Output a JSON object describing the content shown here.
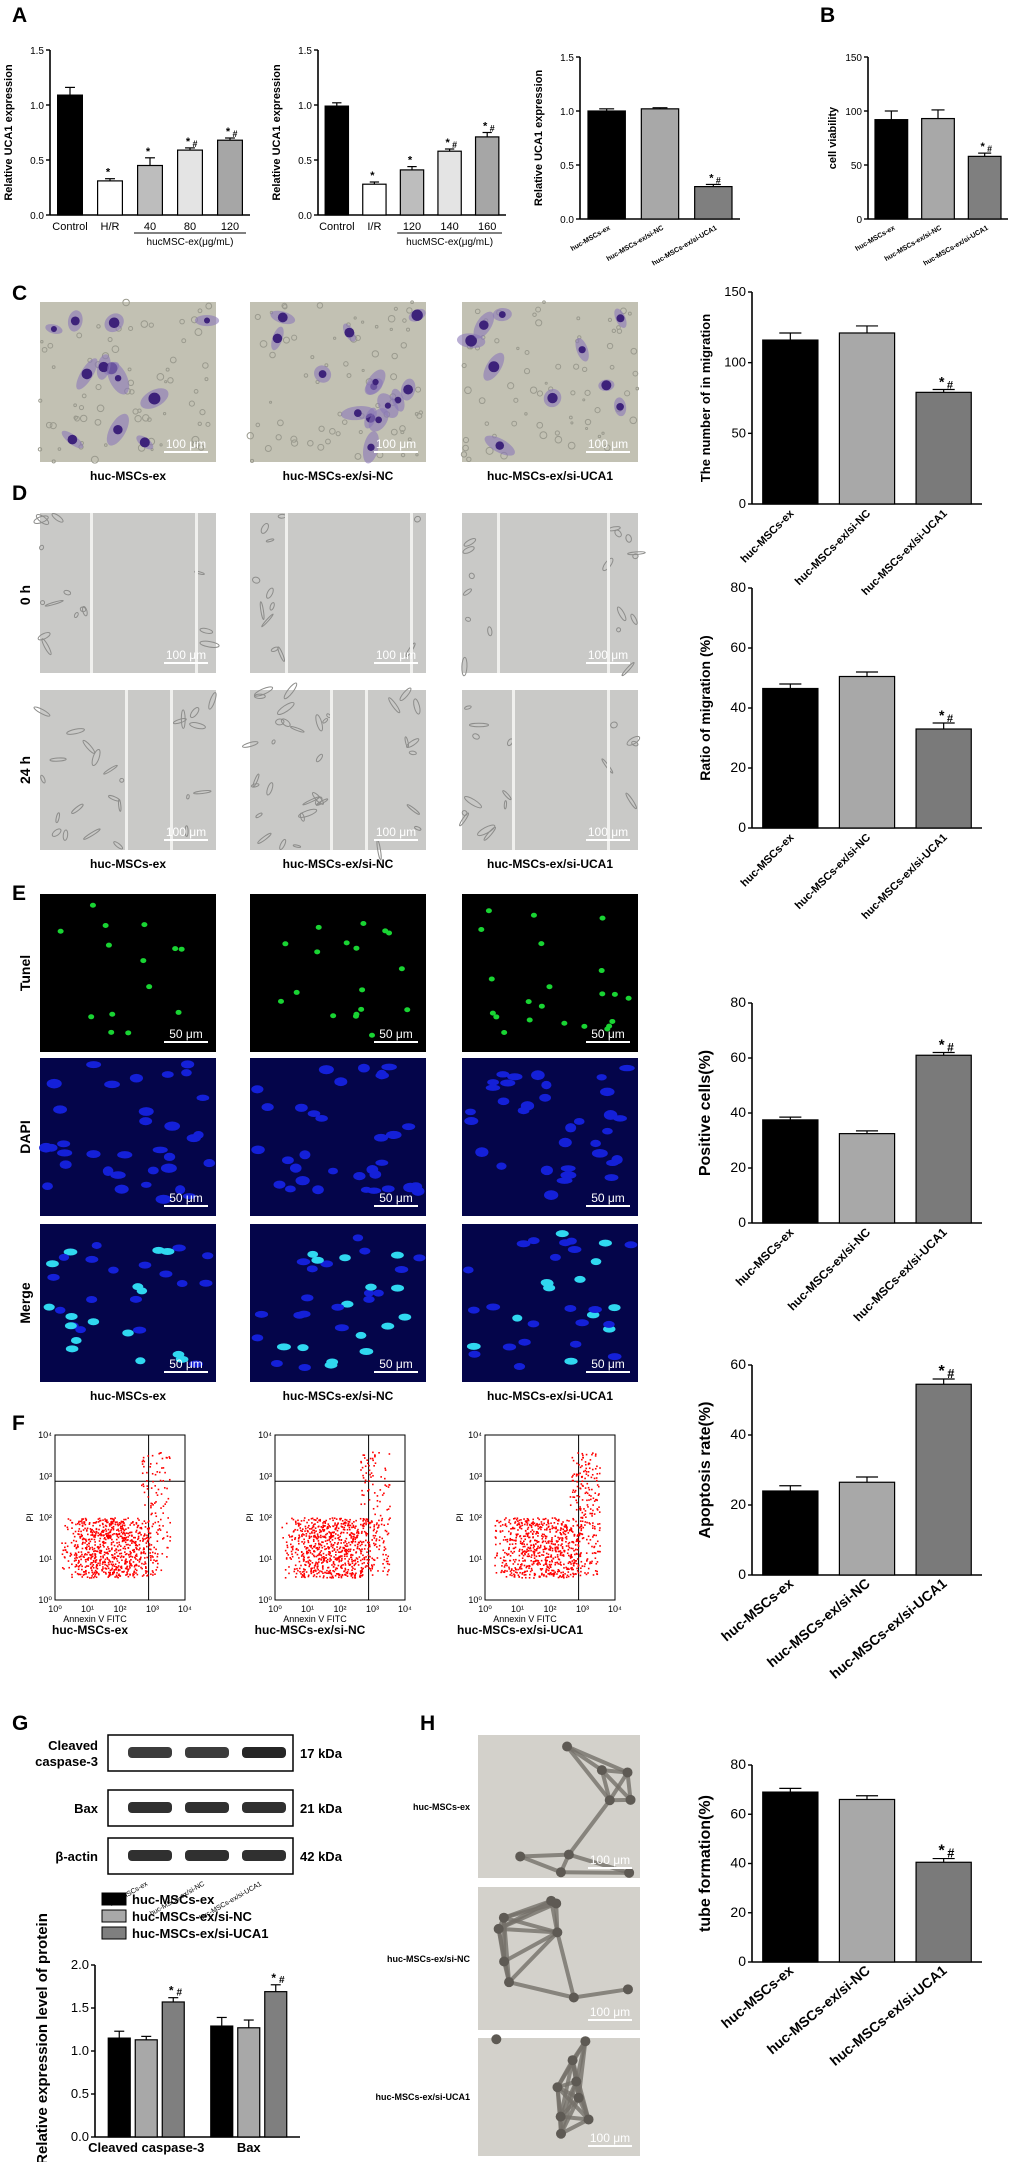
{
  "panel_letters": [
    "A",
    "B",
    "C",
    "D",
    "E",
    "F",
    "G",
    "H"
  ],
  "colors": {
    "black": "#000000",
    "white_bar": "#ffffff",
    "light_gray": "#b9b9b9",
    "mid_gray": "#a6a6a6",
    "dark_gray": "#7f7f7f",
    "flow_dots": "#ff0000",
    "tunel_green": "#19d433",
    "dapi_blue": "#1420d8"
  },
  "groups3": [
    "huc-MSCs-ex",
    "huc-MSCs-ex/si-NC",
    "huc-MSCs-ex/si-UCA1"
  ],
  "sig_marks": {
    "star": "*",
    "hash": "#"
  },
  "micro": {
    "scale_100": "100 μm",
    "scale_50": "50 μm",
    "d_rows": [
      "0 h",
      "24 h"
    ],
    "e_rows": [
      "Tunel",
      "DAPI",
      "Merge"
    ]
  },
  "flow": {
    "xlabel": "Annexin V FITC",
    "ylabel": "PI",
    "xticks": [
      "10⁰",
      "10¹",
      "10²",
      "10³",
      "10⁴"
    ],
    "yticks": [
      "10⁰",
      "10¹",
      "10²",
      "10³",
      "10⁴"
    ]
  },
  "western": {
    "bands": [
      "Cleaved caspase-3",
      "Bax",
      "β-actin"
    ],
    "kda": [
      "17 kDa",
      "21 kDa",
      "42 kDa"
    ]
  },
  "chart_data": [
    {
      "id": "A1",
      "type": "bar",
      "categories": [
        "Control",
        "H/R",
        "40",
        "80",
        "120"
      ],
      "group_label": "hucMSC-ex(μg/mL)",
      "ylabel": "Relative UCA1 expression",
      "ylim": [
        0,
        1.5
      ],
      "yticks": [
        "0.0",
        "0.5",
        "1.0",
        "1.5"
      ],
      "values": [
        1.09,
        0.31,
        0.45,
        0.59,
        0.68
      ],
      "errors": [
        0.07,
        0.02,
        0.07,
        0.02,
        0.02
      ],
      "sig": [
        "",
        "*",
        "*",
        "*#",
        "*#"
      ]
    },
    {
      "id": "A2",
      "type": "bar",
      "categories": [
        "Control",
        "I/R",
        "120",
        "140",
        "160"
      ],
      "group_label": "hucMSC-ex(μg/mL)",
      "ylabel": "Relative UCA1 expression",
      "ylim": [
        0,
        1.5
      ],
      "yticks": [
        "0.0",
        "0.5",
        "1.0",
        "1.5"
      ],
      "values": [
        0.99,
        0.28,
        0.41,
        0.58,
        0.71
      ],
      "errors": [
        0.03,
        0.02,
        0.03,
        0.02,
        0.04
      ],
      "sig": [
        "",
        "*",
        "*",
        "*#",
        "*#"
      ]
    },
    {
      "id": "A3",
      "type": "bar",
      "categories": [
        "huc-MSCs-ex",
        "huc-MSCs-ex/si-NC",
        "huc-MSCs-ex/si-UCA1"
      ],
      "ylabel": "Relative UCA1 expression",
      "ylim": [
        0,
        1.5
      ],
      "yticks": [
        "0.0",
        "0.5",
        "1.0",
        "1.5"
      ],
      "values": [
        1.0,
        1.02,
        0.3
      ],
      "errors": [
        0.02,
        0.01,
        0.02
      ],
      "sig": [
        "",
        "",
        "*#"
      ]
    },
    {
      "id": "B",
      "type": "bar",
      "categories": [
        "huc-MSCs-ex",
        "huc-MSCs-ex/si-NC",
        "huc-MSCs-ex/si-UCA1"
      ],
      "ylabel": "cell viability",
      "ylim": [
        0,
        150
      ],
      "yticks": [
        "0",
        "50",
        "100",
        "150"
      ],
      "values": [
        92,
        93,
        58
      ],
      "errors": [
        8,
        8,
        3
      ],
      "sig": [
        "",
        "",
        "*#"
      ]
    },
    {
      "id": "C",
      "type": "bar",
      "categories": [
        "huc-MSCs-ex",
        "huc-MSCs-ex/si-NC",
        "huc-MSCs-ex/si-UCA1"
      ],
      "ylabel": "The number of in migration",
      "ylim": [
        0,
        150
      ],
      "yticks": [
        "0",
        "50",
        "100",
        "150"
      ],
      "values": [
        116,
        121,
        79
      ],
      "errors": [
        5,
        5,
        2
      ],
      "sig": [
        "",
        "",
        "*#"
      ]
    },
    {
      "id": "D",
      "type": "bar",
      "categories": [
        "huc-MSCs-ex",
        "huc-MSCs-ex/si-NC",
        "huc-MSCs-ex/si-UCA1"
      ],
      "ylabel": "Ratio of migration (%)",
      "ylim": [
        0,
        80
      ],
      "yticks": [
        "0",
        "20",
        "40",
        "60",
        "80"
      ],
      "values": [
        46.5,
        50.5,
        33
      ],
      "errors": [
        1.5,
        1.5,
        2
      ],
      "sig": [
        "",
        "",
        "*#"
      ]
    },
    {
      "id": "E",
      "type": "bar",
      "categories": [
        "huc-MSCs-ex",
        "huc-MSCs-ex/si-NC",
        "huc-MSCs-ex/si-UCA1"
      ],
      "ylabel": "Positive cells(%)",
      "ylim": [
        0,
        80
      ],
      "yticks": [
        "0",
        "20",
        "40",
        "60",
        "80"
      ],
      "values": [
        37.5,
        32.5,
        61
      ],
      "errors": [
        1,
        1,
        1
      ],
      "sig": [
        "",
        "",
        "*#"
      ]
    },
    {
      "id": "F",
      "type": "bar",
      "categories": [
        "huc-MSCs-ex",
        "huc-MSCs-ex/si-NC",
        "huc-MSCs-ex/si-UCA1"
      ],
      "ylabel": "Apoptosis rate(%)",
      "ylim": [
        0,
        60
      ],
      "yticks": [
        "0",
        "20",
        "40",
        "60"
      ],
      "values": [
        24,
        26.5,
        54.5
      ],
      "errors": [
        1.5,
        1.5,
        1.5
      ],
      "sig": [
        "",
        "",
        "*#"
      ]
    },
    {
      "id": "G",
      "type": "bar",
      "categories": [
        "Cleaved caspase-3",
        "Bax"
      ],
      "ylabel": "Relative expression level of protein",
      "ylim": [
        0,
        2.0
      ],
      "yticks": [
        "0.0",
        "0.5",
        "1.0",
        "1.5",
        "2.0"
      ],
      "series": [
        {
          "name": "huc-MSCs-ex",
          "values": [
            1.15,
            1.29
          ],
          "errors": [
            0.08,
            0.1
          ]
        },
        {
          "name": "huc-MSCs-ex/si-NC",
          "values": [
            1.13,
            1.27
          ],
          "errors": [
            0.04,
            0.09
          ]
        },
        {
          "name": "huc-MSCs-ex/si-UCA1",
          "values": [
            1.57,
            1.69
          ],
          "errors": [
            0.05,
            0.08
          ]
        }
      ],
      "sig": [
        [
          "",
          "",
          "*#"
        ],
        [
          "",
          "",
          "*#"
        ]
      ]
    },
    {
      "id": "H",
      "type": "bar",
      "categories": [
        "huc-MSCs-ex",
        "huc-MSCs-ex/si-NC",
        "huc-MSCs-ex/si-UCA1"
      ],
      "ylabel": "tube formation(%)",
      "ylim": [
        0,
        80
      ],
      "yticks": [
        "0",
        "20",
        "40",
        "60",
        "80"
      ],
      "values": [
        69,
        66,
        40.5
      ],
      "errors": [
        1.5,
        1.5,
        1.5
      ],
      "sig": [
        "",
        "",
        "*#"
      ]
    }
  ]
}
